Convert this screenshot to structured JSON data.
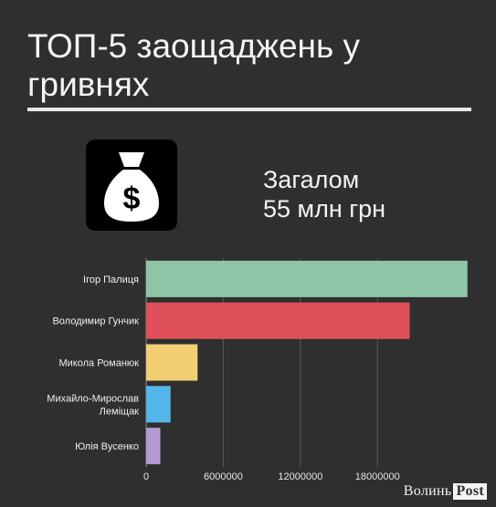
{
  "header": {
    "title_line1": "ТОП-5 заощаджень у",
    "title_line2": "гривнях"
  },
  "icon": "money-bag-icon",
  "summary": {
    "label": "Загалом",
    "value": "55 млн грн"
  },
  "watermark": {
    "part1": "Волинь",
    "part2": "Post"
  },
  "chart_data": {
    "type": "bar",
    "orientation": "horizontal",
    "categories": [
      [
        "Ігор Палиця"
      ],
      [
        "Володимир Гунчик"
      ],
      [
        "Микола Романюк"
      ],
      [
        "Михайло-Мирослав",
        "Леміщак"
      ],
      [
        "Юлія Вусенко"
      ]
    ],
    "values": [
      25000000,
      20500000,
      4000000,
      1900000,
      1100000
    ],
    "colors": [
      "#8dc5a6",
      "#e05058",
      "#f2cf72",
      "#55b6ea",
      "#b39bd1"
    ],
    "xlim": [
      0,
      25300000
    ],
    "xticks": [
      0,
      6000000,
      12000000,
      18000000
    ],
    "xtick_labels": [
      "0",
      "6000000",
      "12000000",
      "18000000"
    ],
    "grid": true,
    "title": "",
    "xlabel": "",
    "ylabel": ""
  }
}
